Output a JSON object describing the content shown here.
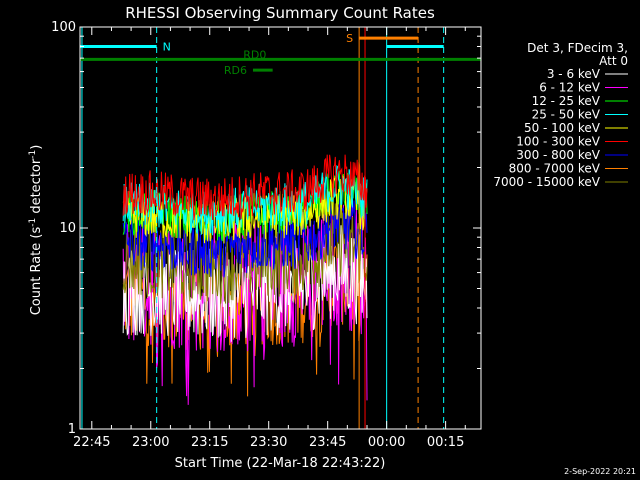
{
  "chart_data": {
    "type": "line",
    "title": "RHESSI Observing Summary Count Rates",
    "xlabel": "Start Time (22-Mar-18 22:43:22)",
    "ylabel_main": "Count Rate (s",
    "ylabel_sup": "-1",
    "ylabel_mid": " detector",
    "ylabel_sup2": "-1",
    "ylabel_end": ")",
    "yscale": "log",
    "ylim": [
      1,
      100
    ],
    "xlim_minutes": [
      -18,
      84
    ],
    "x_ticks": [
      {
        "label": "22:45",
        "min": -15
      },
      {
        "label": "23:00",
        "min": 0
      },
      {
        "label": "23:15",
        "min": 15
      },
      {
        "label": "23:30",
        "min": 30
      },
      {
        "label": "23:45",
        "min": 45
      },
      {
        "label": "00:00",
        "min": 60
      },
      {
        "label": "00:15",
        "min": 75
      }
    ],
    "y_ticks": [
      {
        "label": "1",
        "value": 1
      },
      {
        "label": "10",
        "value": 10
      },
      {
        "label": "100",
        "value": 100
      }
    ],
    "legend_header": [
      "Det 3, FDecim 3,",
      "Att 0"
    ],
    "series": [
      {
        "name": "3 - 6 keV",
        "color": "#ffffff",
        "base": 5.0,
        "noise": 0.25
      },
      {
        "name": "6 - 12 keV",
        "color": "#ff00ff",
        "base": 5.5,
        "noise": 0.35
      },
      {
        "name": "12 - 25 keV",
        "color": "#00ff00",
        "base": 12.0,
        "noise": 0.12
      },
      {
        "name": "25 - 50 keV",
        "color": "#00ffff",
        "base": 13.0,
        "noise": 0.12
      },
      {
        "name": "50 - 100 keV",
        "color": "#ffff00",
        "base": 11.5,
        "noise": 0.12
      },
      {
        "name": "100 - 300 keV",
        "color": "#ff0000",
        "base": 15.0,
        "noise": 0.12
      },
      {
        "name": "300 - 800 keV",
        "color": "#0000ff",
        "base": 8.5,
        "noise": 0.15
      },
      {
        "name": "800 - 7000 keV",
        "color": "#ff8000",
        "base": 4.5,
        "noise": 0.25
      },
      {
        "name": "7000 - 15000 keV",
        "color": "#808000",
        "base": 7.0,
        "noise": 0.2
      }
    ],
    "data_window_minutes": [
      -7,
      55
    ],
    "flags": [
      {
        "label": "N",
        "color": "#00ffff",
        "from": -18,
        "to": 1.5,
        "y": 80,
        "label_at": 1.5
      },
      {
        "label": "N",
        "color": "#00ffff",
        "from": 60,
        "to": 74.5,
        "y": 80,
        "label_at": null
      },
      {
        "label": "S",
        "color": "#ff8000",
        "from": 53,
        "to": 68,
        "y": 88,
        "label_at": 53
      },
      {
        "label": "RD0",
        "color": "#008000",
        "from": -18,
        "to": 84,
        "y": 69,
        "label_at": 22
      },
      {
        "label": "RD6",
        "color": "#008000",
        "from": 26,
        "to": 31,
        "y": 61,
        "label_at": 26
      }
    ],
    "vlines": [
      {
        "min": -17.5,
        "color": "#00ffff",
        "dashed": false
      },
      {
        "min": 1.5,
        "color": "#00ffff",
        "dashed": true
      },
      {
        "min": 53,
        "color": "#ff8000",
        "dashed": false
      },
      {
        "min": 54.5,
        "color": "#ff0000",
        "dashed": false
      },
      {
        "min": 60,
        "color": "#00ffff",
        "dashed": false
      },
      {
        "min": 68,
        "color": "#ff8000",
        "dashed": true
      },
      {
        "min": 74.5,
        "color": "#00ffff",
        "dashed": true
      }
    ],
    "footer_date": "2-Sep-2022 20:21"
  }
}
